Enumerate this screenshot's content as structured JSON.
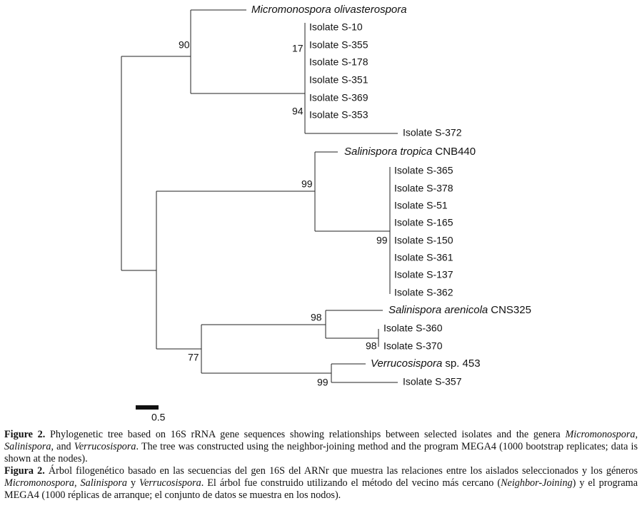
{
  "tree": {
    "leaves": [
      {
        "name": "Micromonospora olivasterospora"
      },
      {
        "name": "Isolate S-10"
      },
      {
        "name": "Isolate S-355"
      },
      {
        "name": "Isolate S-178"
      },
      {
        "name": "Isolate S-351"
      },
      {
        "name": "Isolate S-369"
      },
      {
        "name": "Isolate S-353"
      },
      {
        "name": "Isolate S-372"
      },
      {
        "name": "Salinispora tropica",
        "strain": "CNB440"
      },
      {
        "name": "Isolate S-365"
      },
      {
        "name": "Isolate S-378"
      },
      {
        "name": "Isolate S-51"
      },
      {
        "name": "Isolate S-165"
      },
      {
        "name": "Isolate S-150"
      },
      {
        "name": "Isolate S-361"
      },
      {
        "name": "Isolate S-137"
      },
      {
        "name": "Isolate S-362"
      },
      {
        "name": "Salinispora arenicola",
        "strain": "CNS325"
      },
      {
        "name": "Isolate S-360"
      },
      {
        "name": "Isolate S-370"
      },
      {
        "name": "Verrucosispora",
        "strain": "sp. 453"
      },
      {
        "name": "Isolate S-357"
      }
    ],
    "bootstrap": [
      90,
      17,
      94,
      99,
      99,
      98,
      98,
      77,
      99
    ],
    "scale_bar": "0.5"
  },
  "caption": {
    "en": [
      "Figure 2.",
      " Phylogenetic tree based on 16S rRNA gene sequences showing relationships between selected isolates and the genera ",
      "Micromonospora",
      ", ",
      "Salinispora",
      ", and ",
      "Verrucosispora",
      ". The tree was constructed using the neighbor-joining method and the program MEGA4 (1000 bootstrap replicates; data is shown at the nodes)."
    ],
    "es": [
      "Figura 2.",
      " Árbol filogenético basado en las secuencias del gen 16S del ARNr que muestra las relaciones entre los aislados seleccionados y los géneros ",
      "Micromonospora",
      ", ",
      "Salinispora",
      " y ",
      "Verrucosispora",
      ". El árbol fue construido utilizando el método del vecino más cercano (",
      "Neighbor-Joining",
      ") y el programa MEGA4 (1000 réplicas de arranque; el conjunto de datos se muestra en los nodos)."
    ]
  }
}
